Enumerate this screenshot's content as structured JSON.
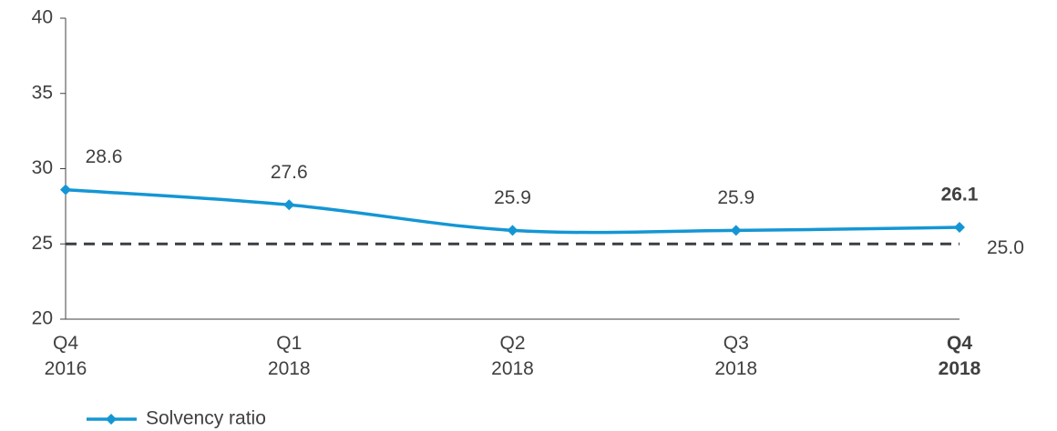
{
  "chart_data": {
    "type": "line",
    "categories": [
      "Q4 2016",
      "Q1 2018",
      "Q2 2018",
      "Q3 2018",
      "Q4 2018"
    ],
    "series": [
      {
        "name": "Solvency ratio",
        "color": "#1496d4",
        "values": [
          28.6,
          27.6,
          25.9,
          25.9,
          26.1
        ]
      }
    ],
    "reference_line": {
      "value": 25,
      "label": "25.0",
      "color": "#3a3f44"
    },
    "ylim": [
      20,
      40
    ],
    "yticks": [
      20,
      25,
      30,
      35,
      40
    ],
    "legend": "bottom-left"
  }
}
